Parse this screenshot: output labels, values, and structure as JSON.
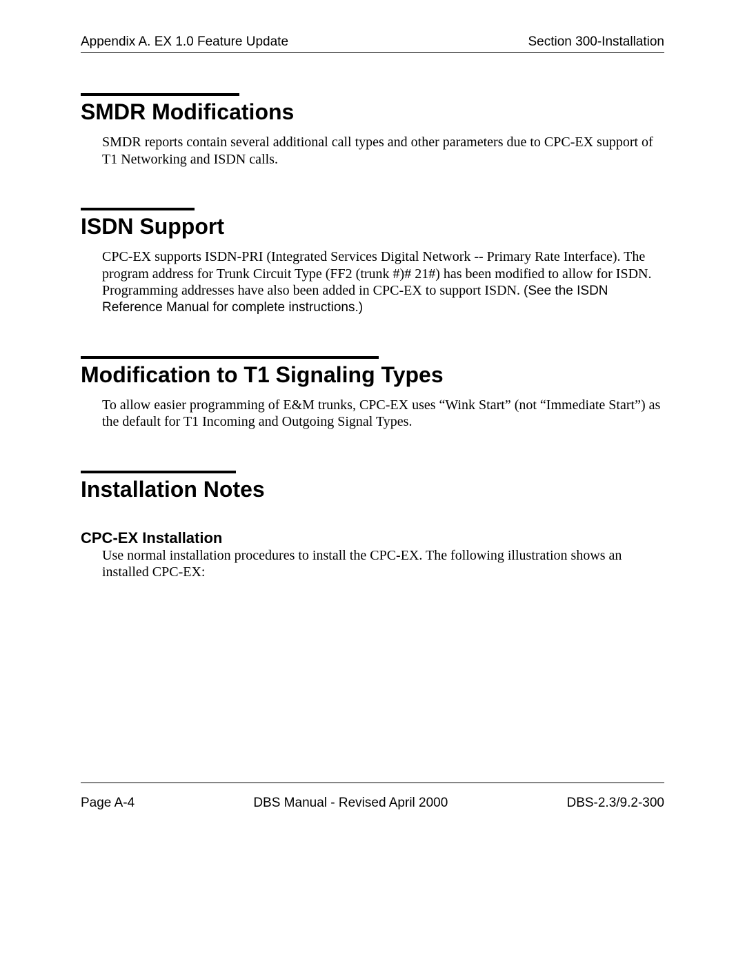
{
  "header": {
    "left": "Appendix A. EX 1.0 Feature Update",
    "right": "Section 300-Installation"
  },
  "sections": {
    "smdr": {
      "title": "SMDR Modifications",
      "body": "SMDR reports contain several additional call types and other parameters due to CPC-EX support of T1 Networking and ISDN calls."
    },
    "isdn": {
      "title": "ISDN Support",
      "body_serif": "CPC-EX supports ISDN-PRI (Integrated Services Digital Network -- Primary Rate Interface). The program address for Trunk Circuit Type (FF2  (trunk #)#  21#) has been modified to allow for ISDN. Programming addresses have also been added in CPC-EX to support ISDN. ",
      "body_sans": "(See the ISDN Reference Manual for complete instructions.)"
    },
    "t1": {
      "title": "Modification to T1 Signaling Types",
      "body": "To allow easier programming of E&M trunks, CPC-EX uses “Wink Start” (not “Immediate Start”) as the default for T1 Incoming and Outgoing Signal Types."
    },
    "install": {
      "title": "Installation Notes",
      "sub_title": "CPC-EX Installation",
      "sub_body": "Use normal installation procedures to install the CPC-EX. The following illustration shows an installed CPC-EX:"
    }
  },
  "footer": {
    "left": "Page A-4",
    "center": "DBS Manual - Revised April 2000",
    "right": "DBS-2.3/9.2-300"
  },
  "colors": {
    "text": "#000000",
    "background": "#ffffff"
  }
}
